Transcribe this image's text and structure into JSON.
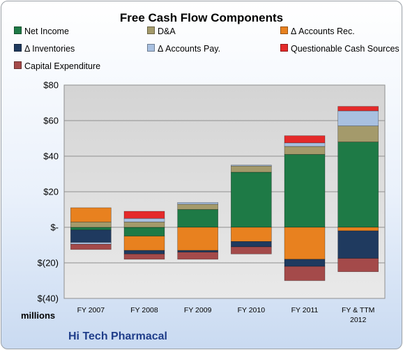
{
  "chart_data": {
    "type": "bar",
    "stacked": true,
    "title": "Free Cash Flow Components",
    "units_label": "millions",
    "company": "Hi Tech Pharmacal",
    "categories": [
      [
        "FY 2007"
      ],
      [
        "FY 2008"
      ],
      [
        "FY 2009"
      ],
      [
        "FY 2010"
      ],
      [
        "FY 2011"
      ],
      [
        "FY & TTM",
        "2012"
      ]
    ],
    "ylim": [
      -40,
      80
    ],
    "yticks": [
      80,
      60,
      40,
      20,
      0,
      -20,
      -40
    ],
    "ytick_labels": [
      "$80",
      "$60",
      "$40",
      "$20",
      "$-",
      "$(20)",
      "$(40)"
    ],
    "grid": true,
    "legend_position": "top",
    "series": [
      {
        "name": "Net Income",
        "color": "#1e7a46",
        "values": [
          -1.5,
          -5,
          10,
          31,
          41,
          48
        ]
      },
      {
        "name": "D&A",
        "color": "#a49a6b",
        "values": [
          3,
          3,
          3,
          3.5,
          4.5,
          9
        ]
      },
      {
        "name": "Δ Accounts Rec.",
        "color": "#e8811f",
        "values": [
          8,
          -8,
          -13,
          -8,
          -18,
          -2
        ]
      },
      {
        "name": "Δ Inventories",
        "color": "#1f3a5f",
        "values": [
          -7,
          -2,
          -1,
          -3,
          -4,
          -15.5
        ]
      },
      {
        "name": "Δ Accounts Pay.",
        "color": "#a8c0e0",
        "values": [
          -1,
          2,
          1,
          0.5,
          2,
          8.5
        ]
      },
      {
        "name": "Questionable Cash Sources",
        "color": "#e42a2a",
        "values": [
          0,
          4,
          0,
          0,
          4,
          2.5
        ]
      },
      {
        "name": "Capital Expenditure",
        "color": "#a44a4a",
        "values": [
          -3,
          -3,
          -4,
          -4,
          -8,
          -7.5
        ]
      }
    ]
  }
}
